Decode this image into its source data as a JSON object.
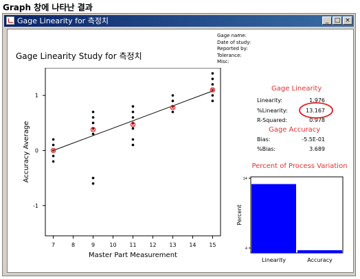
{
  "caption": "Graph 창에 나타난 결과",
  "window": {
    "title": "Gage Linearity for 측정치",
    "buttons": {
      "minimize": "_",
      "maximize": "□",
      "close": "×"
    }
  },
  "report": {
    "title": "Gage Linearity Study for 측정치",
    "meta": [
      "Gage name:",
      "Date of study:",
      "Reported by:",
      "Tolerance:",
      "Misc:"
    ]
  },
  "linearity": {
    "heading": "Gage Linearity",
    "rows": [
      {
        "label": "Linearity:",
        "value": "1.976"
      },
      {
        "label": "%Linearity:",
        "value": "13.167"
      },
      {
        "label": "R-Squared:",
        "value": "0.978"
      }
    ]
  },
  "accuracy": {
    "heading": "Gage Accuracy",
    "rows": [
      {
        "label": "Bias:",
        "value": "-5.5E-01"
      },
      {
        "label": "%Bias:",
        "value": "3.689"
      }
    ]
  },
  "chart_data": [
    {
      "type": "scatter",
      "xlabel": "Master Part Measurement",
      "ylabel": "Accuracy Average",
      "xlim": [
        6.6,
        15.4
      ],
      "ylim": [
        -1.55,
        1.5
      ],
      "xticks": [
        7,
        8,
        9,
        10,
        11,
        12,
        13,
        14,
        15
      ],
      "yticks": [
        -1,
        0,
        1
      ],
      "points": [
        [
          7,
          0.2
        ],
        [
          7,
          0.1
        ],
        [
          7,
          0.0
        ],
        [
          7,
          -0.1
        ],
        [
          7,
          -0.2
        ],
        [
          9,
          0.7
        ],
        [
          9,
          0.6
        ],
        [
          9,
          0.5
        ],
        [
          9,
          0.4
        ],
        [
          9,
          0.3
        ],
        [
          9,
          -0.5
        ],
        [
          9,
          -0.6
        ],
        [
          11,
          0.8
        ],
        [
          11,
          0.7
        ],
        [
          11,
          0.6
        ],
        [
          11,
          0.5
        ],
        [
          11,
          0.4
        ],
        [
          11,
          0.2
        ],
        [
          11,
          0.1
        ],
        [
          13,
          1.0
        ],
        [
          13,
          0.9
        ],
        [
          13,
          0.8
        ],
        [
          13,
          0.7
        ],
        [
          15,
          1.4
        ],
        [
          15,
          1.3
        ],
        [
          15,
          1.2
        ],
        [
          15,
          1.1
        ],
        [
          15,
          1.0
        ],
        [
          15,
          0.9
        ]
      ],
      "averages": [
        [
          7,
          0.0
        ],
        [
          9,
          0.38
        ],
        [
          11,
          0.47
        ],
        [
          13,
          0.78
        ],
        [
          15,
          1.1
        ]
      ],
      "fit_line": [
        [
          7,
          0.0
        ],
        [
          15,
          1.08
        ]
      ],
      "colors": {
        "points": "#000000",
        "averages": "#e03030",
        "line": "#000000"
      }
    },
    {
      "type": "bar",
      "title": "Percent of Process Variation",
      "ylabel": "Percent",
      "categories": [
        "Linearity",
        "Accuracy"
      ],
      "values": [
        13.167,
        3.689
      ],
      "ylim": [
        3.3,
        14.2
      ],
      "yticks": [
        4,
        14
      ],
      "colors": {
        "bars": "#0000ff",
        "title": "#e03030"
      }
    }
  ],
  "annotation": {
    "shape": "ellipse",
    "color": "#e02020",
    "target": "%Linearity value"
  }
}
